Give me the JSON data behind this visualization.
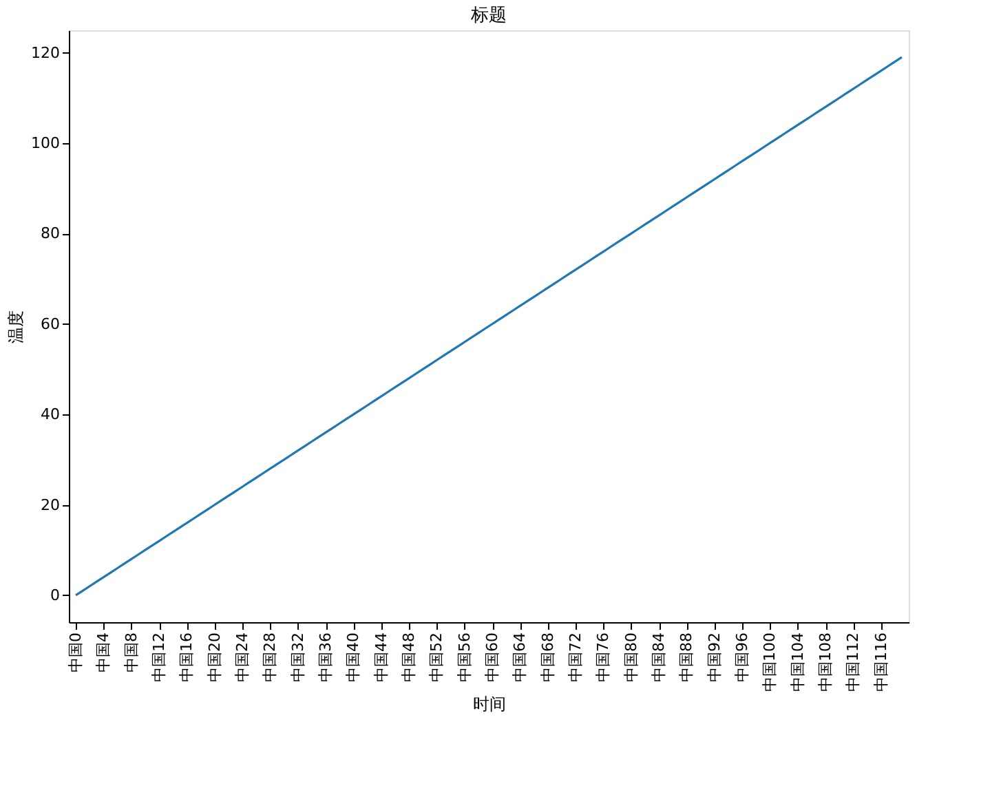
{
  "chart_data": {
    "type": "line",
    "title": "标题",
    "xlabel": "时间",
    "ylabel": "温度",
    "categories": [
      "中国0",
      null,
      null,
      null,
      "中国4",
      null,
      null,
      null,
      "中国8",
      null,
      null,
      null,
      "中国12",
      null,
      null,
      null,
      "中国16",
      null,
      null,
      null,
      "中国20",
      null,
      null,
      null,
      "中国24",
      null,
      null,
      null,
      "中国28",
      null,
      null,
      null,
      "中国32",
      null,
      null,
      null,
      "中国36",
      null,
      null,
      null,
      "中国40",
      null,
      null,
      null,
      "中国44",
      null,
      null,
      null,
      "中国48",
      null,
      null,
      null,
      "中国52",
      null,
      null,
      null,
      "中国56",
      null,
      null,
      null,
      "中国60",
      null,
      null,
      null,
      "中国64",
      null,
      null,
      null,
      "中国68",
      null,
      null,
      null,
      "中国72",
      null,
      null,
      null,
      "中国76",
      null,
      null,
      null,
      "中国80",
      null,
      null,
      null,
      "中国84",
      null,
      null,
      null,
      "中国88",
      null,
      null,
      null,
      "中国92",
      null,
      null,
      null,
      "中国96",
      null,
      null,
      null,
      "中国100",
      null,
      null,
      null,
      "中国104",
      null,
      null,
      null,
      "中国108",
      null,
      null,
      null,
      "中国112",
      null,
      null,
      null,
      "中国116",
      null,
      null,
      null
    ],
    "series": [
      {
        "color": "#1f77b4",
        "values": [
          0,
          1,
          2,
          3,
          4,
          5,
          6,
          7,
          8,
          9,
          10,
          11,
          12,
          13,
          14,
          15,
          16,
          17,
          18,
          19,
          20,
          21,
          22,
          23,
          24,
          25,
          26,
          27,
          28,
          29,
          30,
          31,
          32,
          33,
          34,
          35,
          36,
          37,
          38,
          39,
          40,
          41,
          42,
          43,
          44,
          45,
          46,
          47,
          48,
          49,
          50,
          51,
          52,
          53,
          54,
          55,
          56,
          57,
          58,
          59,
          60,
          61,
          62,
          63,
          64,
          65,
          66,
          67,
          68,
          69,
          70,
          71,
          72,
          73,
          74,
          75,
          76,
          77,
          78,
          79,
          80,
          81,
          82,
          83,
          84,
          85,
          86,
          87,
          88,
          89,
          90,
          91,
          92,
          93,
          94,
          95,
          96,
          97,
          98,
          99,
          100,
          101,
          102,
          103,
          104,
          105,
          106,
          107,
          108,
          109,
          110,
          111,
          112,
          113,
          114,
          115,
          116,
          117,
          118,
          119
        ]
      }
    ],
    "ylim": [
      -5.95,
      124.95
    ],
    "yticks": [
      0,
      20,
      40,
      60,
      80,
      100,
      120
    ],
    "grid": false,
    "marker": "none",
    "line_style": "solid"
  }
}
